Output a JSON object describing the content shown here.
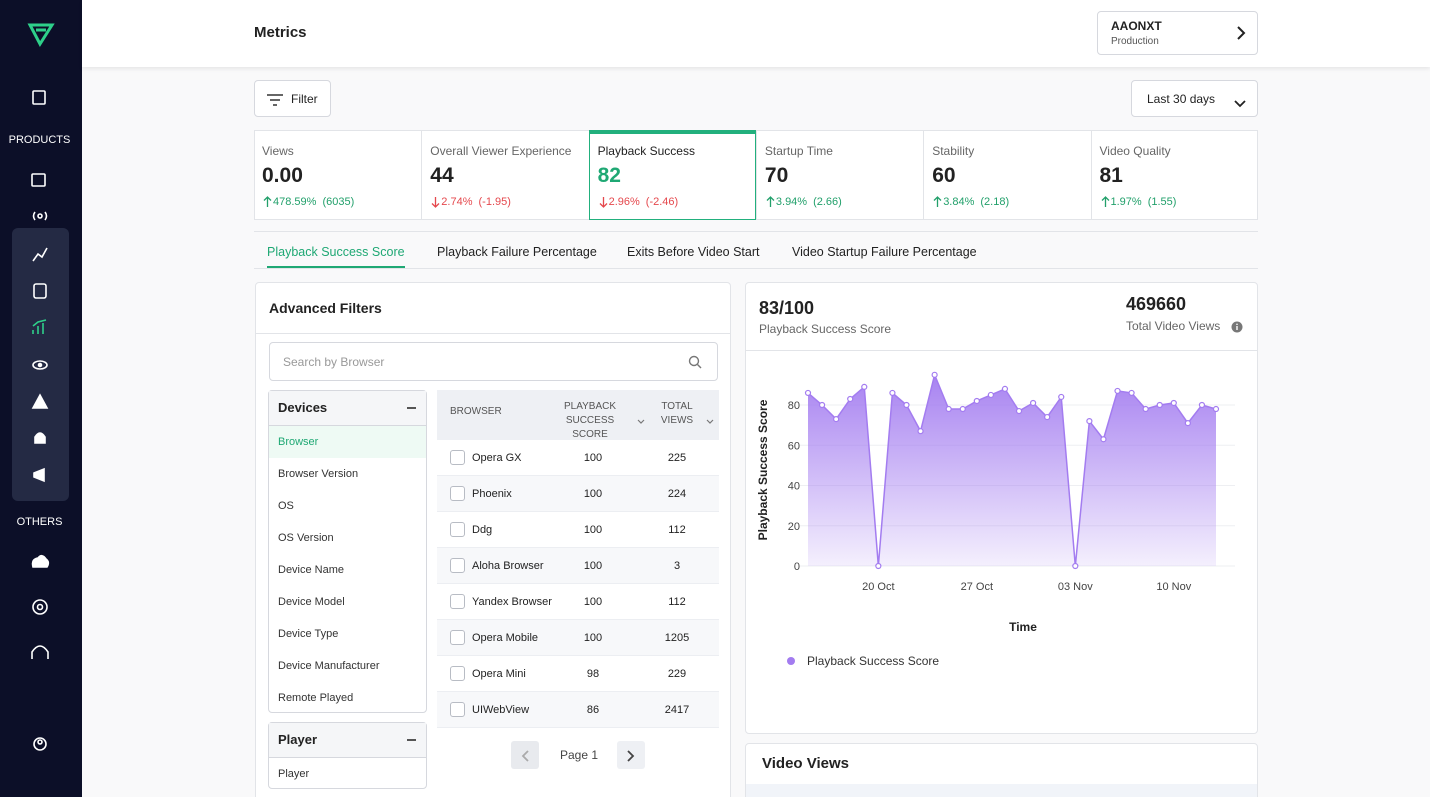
{
  "header": {
    "title": "Metrics",
    "org": "AAONXT",
    "environment": "Production"
  },
  "sidebar": {
    "products": "PRODUCTS",
    "others": "OTHERS"
  },
  "toolbar": {
    "filter": "Filter",
    "date_range": "Last 30 days"
  },
  "kpis": [
    {
      "label": "Views",
      "value": "0.00",
      "change": "478.59%",
      "delta": "(6035)",
      "trend": "up"
    },
    {
      "label": "Overall Viewer Experience",
      "value": "44",
      "change": "2.74%",
      "delta": "(-1.95)",
      "trend": "down"
    },
    {
      "label": "Playback Success",
      "value": "82",
      "change": "2.96%",
      "delta": "(-2.46)",
      "trend": "down",
      "active": true
    },
    {
      "label": "Startup Time",
      "value": "70",
      "change": "3.94%",
      "delta": "(2.66)",
      "trend": "up"
    },
    {
      "label": "Stability",
      "value": "60",
      "change": "3.84%",
      "delta": "(2.18)",
      "trend": "up"
    },
    {
      "label": "Video Quality",
      "value": "81",
      "change": "1.97%",
      "delta": "(1.55)",
      "trend": "up"
    }
  ],
  "tabs": {
    "items": [
      "Playback Success Score",
      "Playback Failure Percentage",
      "Exits Before Video Start",
      "Video Startup Failure Percentage"
    ],
    "active": 0
  },
  "filters": {
    "title": "Advanced Filters",
    "search_placeholder": "Search by Browser",
    "groups": [
      {
        "name": "Devices",
        "items": [
          "Browser",
          "Browser Version",
          "OS",
          "OS Version",
          "Device Name",
          "Device Model",
          "Device Type",
          "Device Manufacturer",
          "Remote Played"
        ],
        "active": 0
      },
      {
        "name": "Player",
        "items": [
          "Player"
        ]
      }
    ]
  },
  "table": {
    "columns": [
      "BROWSER",
      "PLAYBACK SUCCESS SCORE",
      "TOTAL VIEWS"
    ],
    "rows": [
      [
        "Opera GX",
        100,
        225
      ],
      [
        "Phoenix",
        100,
        224
      ],
      [
        "Ddg",
        100,
        112
      ],
      [
        "Aloha Browser",
        100,
        3
      ],
      [
        "Yandex Browser",
        100,
        112
      ],
      [
        "Opera Mobile",
        100,
        1205
      ],
      [
        "Opera Mini",
        98,
        229
      ],
      [
        "UIWebView",
        86,
        2417
      ]
    ],
    "page": "Page 1"
  },
  "score_card": {
    "score": "83/100",
    "score_label": "Playback Success Score",
    "total": 469660,
    "total_label": "Total Video Views"
  },
  "chart_data": {
    "type": "area",
    "y_label": "Playback Success Score",
    "x_label": "Time",
    "categories": [
      null,
      null,
      null,
      null,
      null,
      "20 Oct",
      null,
      null,
      null,
      null,
      null,
      null,
      "27 Oct",
      null,
      null,
      null,
      null,
      null,
      null,
      "03 Nov",
      null,
      null,
      null,
      null,
      null,
      null,
      "10 Nov",
      null,
      null,
      null
    ],
    "series": [
      {
        "name": "Playback Success Score",
        "color": "#a37cf0",
        "values": [
          86,
          80,
          73,
          83,
          89,
          0,
          86,
          80,
          67,
          95,
          78,
          78,
          82,
          85,
          88,
          77,
          81,
          74,
          84,
          0,
          72,
          63,
          87,
          86,
          78,
          80,
          81,
          71,
          80,
          78
        ]
      }
    ],
    "ylim": [
      0,
      100
    ],
    "yticks": [
      0,
      20,
      40,
      60,
      80
    ],
    "grid": true,
    "legend": "bottom-left"
  },
  "video_views": {
    "title": "Video Views"
  }
}
